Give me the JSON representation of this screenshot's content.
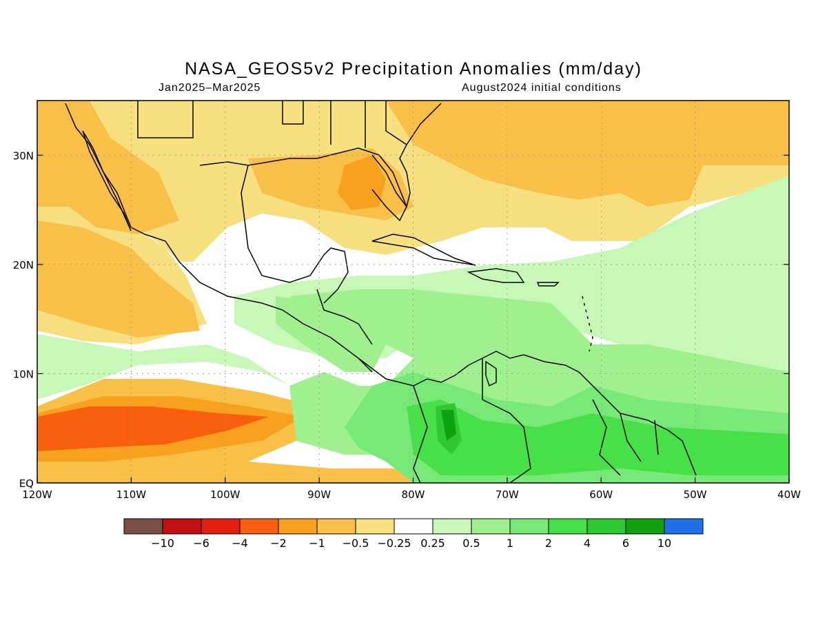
{
  "title": "NASA_GEOS5v2 Precipitation Anomalies (mm/day)",
  "subtitle_left": "Jan2025–Mar2025",
  "subtitle_right": "August2024 initial conditions",
  "map": {
    "lon_range": [
      -120,
      -40
    ],
    "lat_range": [
      0,
      35
    ],
    "lon_ticks": [
      {
        "value": -120,
        "label": "120W"
      },
      {
        "value": -110,
        "label": "110W"
      },
      {
        "value": -100,
        "label": "100W"
      },
      {
        "value": -90,
        "label": "90W"
      },
      {
        "value": -80,
        "label": "80W"
      },
      {
        "value": -70,
        "label": "70W"
      },
      {
        "value": -60,
        "label": "60W"
      },
      {
        "value": -50,
        "label": "50W"
      },
      {
        "value": -40,
        "label": "40W"
      }
    ],
    "lat_ticks": [
      {
        "value": 0,
        "label": "EQ"
      },
      {
        "value": 10,
        "label": "10N"
      },
      {
        "value": 20,
        "label": "20N"
      },
      {
        "value": 30,
        "label": "30N"
      }
    ],
    "grid": "dotted"
  },
  "colorbar": {
    "colors": [
      "#7a5046",
      "#c01010",
      "#e02010",
      "#f86010",
      "#f8a020",
      "#f8c048",
      "#f8e080",
      "#ffffff",
      "#c8f8b8",
      "#a0f090",
      "#78e878",
      "#48e048",
      "#30c830",
      "#10a010",
      "#2070e8"
    ],
    "labels": [
      "−10",
      "−6",
      "−4",
      "−2",
      "−1",
      "−0.5",
      "−0.25",
      "0.25",
      "0.5",
      "1",
      "2",
      "4",
      "6",
      "10"
    ]
  }
}
